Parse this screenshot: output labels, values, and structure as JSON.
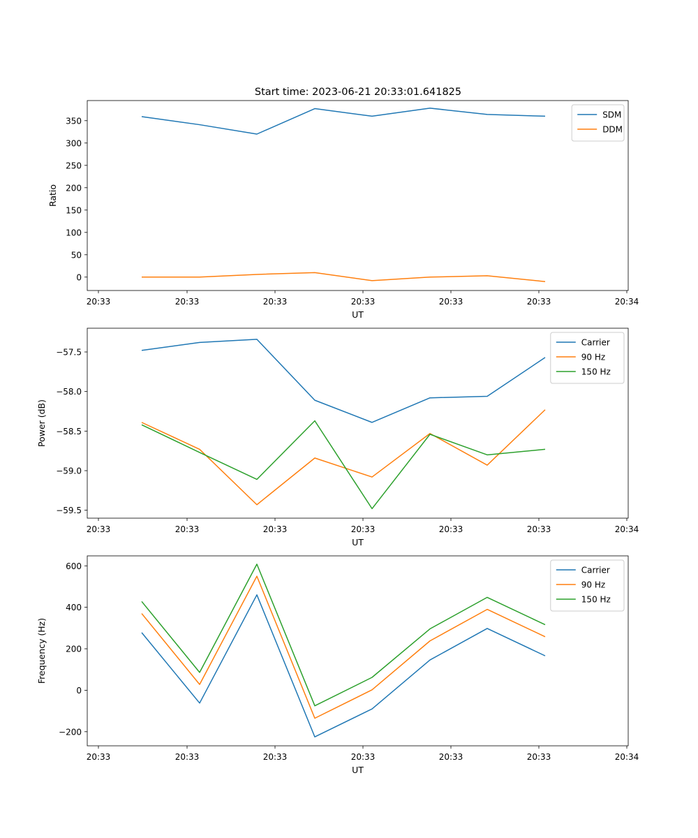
{
  "figure": {
    "title": "Start time: 2023-06-21 20:33:01.641825"
  },
  "colors": {
    "blue": "#1f77b4",
    "orange": "#ff7f0e",
    "green": "#2ca02c"
  },
  "chart_data": [
    {
      "type": "line",
      "title": "Start time: 2023-06-21 20:33:01.641825",
      "xlabel": "UT",
      "ylabel": "Ratio",
      "x_tick_labels": [
        "20:33",
        "20:33",
        "20:33",
        "20:33",
        "20:33",
        "20:33",
        "20:34"
      ],
      "y_ticks": [
        0,
        50,
        100,
        150,
        200,
        250,
        300,
        350
      ],
      "ylim": [
        -30,
        395
      ],
      "legend": "top-right",
      "grid": false,
      "series": [
        {
          "name": "SDM",
          "color": "#1f77b4",
          "values": [
            359,
            341,
            320,
            377,
            360,
            378,
            364,
            360
          ]
        },
        {
          "name": "DDM",
          "color": "#ff7f0e",
          "values": [
            0,
            0,
            6,
            10,
            -8,
            0,
            3,
            -10
          ]
        }
      ]
    },
    {
      "type": "line",
      "xlabel": "UT",
      "ylabel": "Power (dB)",
      "x_tick_labels": [
        "20:33",
        "20:33",
        "20:33",
        "20:33",
        "20:33",
        "20:33",
        "20:34"
      ],
      "y_ticks": [
        -57.5,
        -58.0,
        -58.5,
        -59.0,
        -59.5
      ],
      "y_tick_labels": [
        "−57.5",
        "−58.0",
        "−58.5",
        "−59.0",
        "−59.5"
      ],
      "ylim": [
        -59.6,
        -57.2
      ],
      "legend": "top-right",
      "grid": false,
      "series": [
        {
          "name": "Carrier",
          "color": "#1f77b4",
          "values": [
            -57.48,
            -57.38,
            -57.34,
            -58.11,
            -58.39,
            -58.08,
            -58.06,
            -57.57
          ]
        },
        {
          "name": "90 Hz",
          "color": "#ff7f0e",
          "values": [
            -58.39,
            -58.73,
            -59.43,
            -58.84,
            -59.08,
            -58.53,
            -58.93,
            -58.23
          ]
        },
        {
          "name": "150 Hz",
          "color": "#2ca02c",
          "values": [
            -58.42,
            -58.77,
            -59.11,
            -58.37,
            -59.48,
            -58.54,
            -58.8,
            -58.73
          ]
        }
      ]
    },
    {
      "type": "line",
      "xlabel": "UT",
      "ylabel": "Frequency (Hz)",
      "x_tick_labels": [
        "20:33",
        "20:33",
        "20:33",
        "20:33",
        "20:33",
        "20:33",
        "20:34"
      ],
      "y_ticks": [
        -200,
        0,
        200,
        400,
        600
      ],
      "y_tick_labels": [
        "−200",
        "0",
        "200",
        "400",
        "600"
      ],
      "ylim": [
        -268,
        648
      ],
      "legend": "top-right",
      "grid": false,
      "series": [
        {
          "name": "Carrier",
          "color": "#1f77b4",
          "values": [
            278,
            -62,
            460,
            -225,
            -90,
            146,
            298,
            166
          ]
        },
        {
          "name": "90 Hz",
          "color": "#ff7f0e",
          "values": [
            370,
            28,
            550,
            -135,
            2,
            238,
            390,
            258
          ]
        },
        {
          "name": "150 Hz",
          "color": "#2ca02c",
          "values": [
            428,
            86,
            608,
            -75,
            62,
            296,
            448,
            316
          ]
        }
      ]
    }
  ]
}
